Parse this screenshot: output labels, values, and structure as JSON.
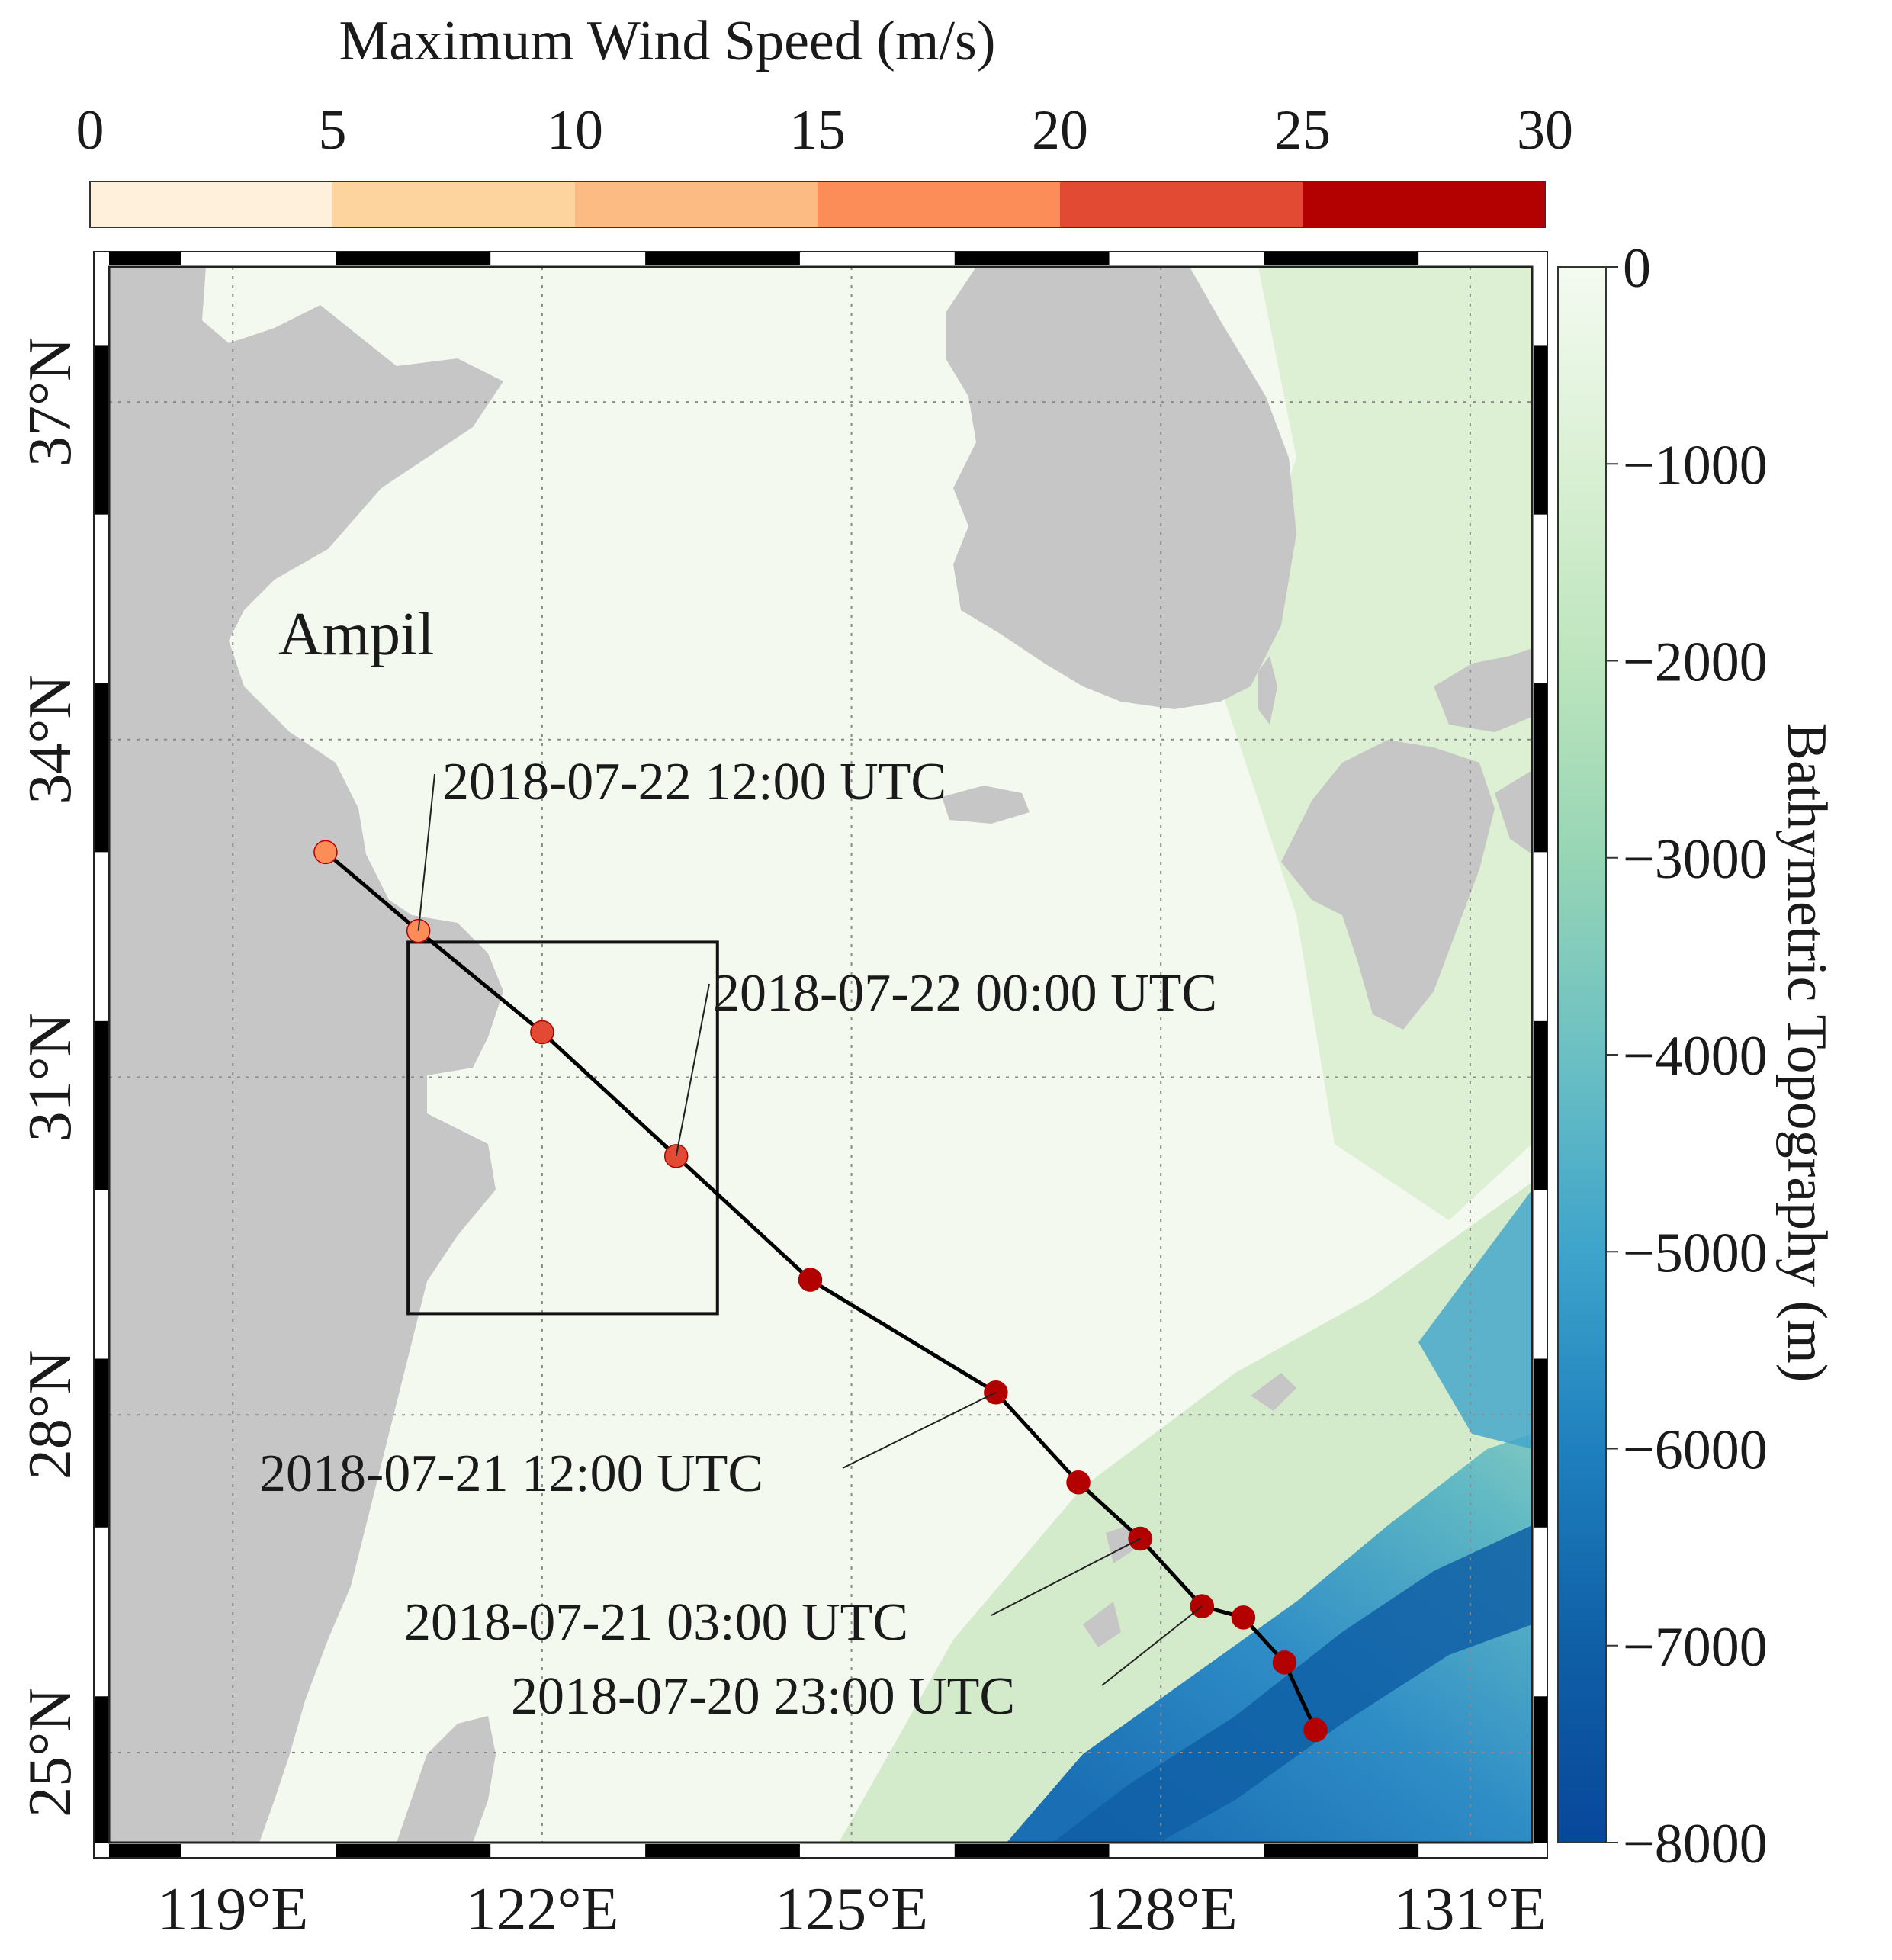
{
  "wind_colorbar": {
    "title": "Maximum Wind Speed (m/s)",
    "ticks": [
      "0",
      "5",
      "10",
      "15",
      "20",
      "25",
      "30"
    ],
    "bins": [
      {
        "from": 0,
        "to": 5,
        "color": "#fff0db"
      },
      {
        "from": 5,
        "to": 10,
        "color": "#fdd49e"
      },
      {
        "from": 10,
        "to": 15,
        "color": "#fdbb84"
      },
      {
        "from": 15,
        "to": 20,
        "color": "#fc8d59"
      },
      {
        "from": 20,
        "to": 25,
        "color": "#e34a33"
      },
      {
        "from": 25,
        "to": 30,
        "color": "#b30000"
      }
    ]
  },
  "map": {
    "lon_range": [
      117.8,
      131.6
    ],
    "lat_range": [
      24.2,
      38.2
    ],
    "lon_ticks": [
      {
        "value": 119,
        "label": "119°E"
      },
      {
        "value": 122,
        "label": "122°E"
      },
      {
        "value": 125,
        "label": "125°E"
      },
      {
        "value": 128,
        "label": "128°E"
      },
      {
        "value": 131,
        "label": "131°E"
      }
    ],
    "lat_ticks": [
      {
        "value": 25,
        "label": "25°N"
      },
      {
        "value": 28,
        "label": "28°N"
      },
      {
        "value": 31,
        "label": "31°N"
      },
      {
        "value": 34,
        "label": "34°N"
      },
      {
        "value": 37,
        "label": "37°N"
      }
    ],
    "grid": true,
    "land_color": "#c6c6c6",
    "storm_name": "Ampil",
    "study_box": {
      "lon_min": 120.7,
      "lon_max": 123.7,
      "lat_min": 28.9,
      "lat_max": 32.2
    }
  },
  "bathymetry_colorbar": {
    "label": "Bathymetric Topography (m)",
    "ticks": [
      "0",
      "−1000",
      "−2000",
      "−3000",
      "−4000",
      "−5000",
      "−6000",
      "−7000",
      "−8000"
    ],
    "range": [
      0,
      -8000
    ],
    "colors": [
      "#f4faf1",
      "#daf0d4",
      "#bde5bd",
      "#97d5b5",
      "#6cc0c3",
      "#3ea4cb",
      "#1f80be",
      "#0f5fa6",
      "#08479b"
    ]
  },
  "track": {
    "points": [
      {
        "lon": 129.5,
        "lat": 25.2,
        "wind": 28
      },
      {
        "lon": 129.2,
        "lat": 25.8,
        "wind": 27
      },
      {
        "lon": 128.8,
        "lat": 26.2,
        "wind": 27
      },
      {
        "lon": 128.4,
        "lat": 26.3,
        "wind": 27
      },
      {
        "lon": 127.8,
        "lat": 26.9,
        "wind": 27
      },
      {
        "lon": 127.2,
        "lat": 27.4,
        "wind": 27
      },
      {
        "lon": 126.4,
        "lat": 28.2,
        "wind": 27
      },
      {
        "lon": 124.6,
        "lat": 29.2,
        "wind": 26
      },
      {
        "lon": 123.3,
        "lat": 30.3,
        "wind": 23
      },
      {
        "lon": 122.0,
        "lat": 31.4,
        "wind": 21
      },
      {
        "lon": 120.8,
        "lat": 32.3,
        "wind": 19
      },
      {
        "lon": 119.9,
        "lat": 33.0,
        "wind": 16
      }
    ],
    "annotations": [
      {
        "label": "2018-07-22 12:00 UTC",
        "point_index": 10
      },
      {
        "label": "2018-07-22 00:00 UTC",
        "point_index": 8
      },
      {
        "label": "2018-07-21 12:00 UTC",
        "point_index": 6
      },
      {
        "label": "2018-07-21 03:00 UTC",
        "point_index": 4
      },
      {
        "label": "2018-07-20 23:00 UTC",
        "point_index": 3
      }
    ]
  }
}
